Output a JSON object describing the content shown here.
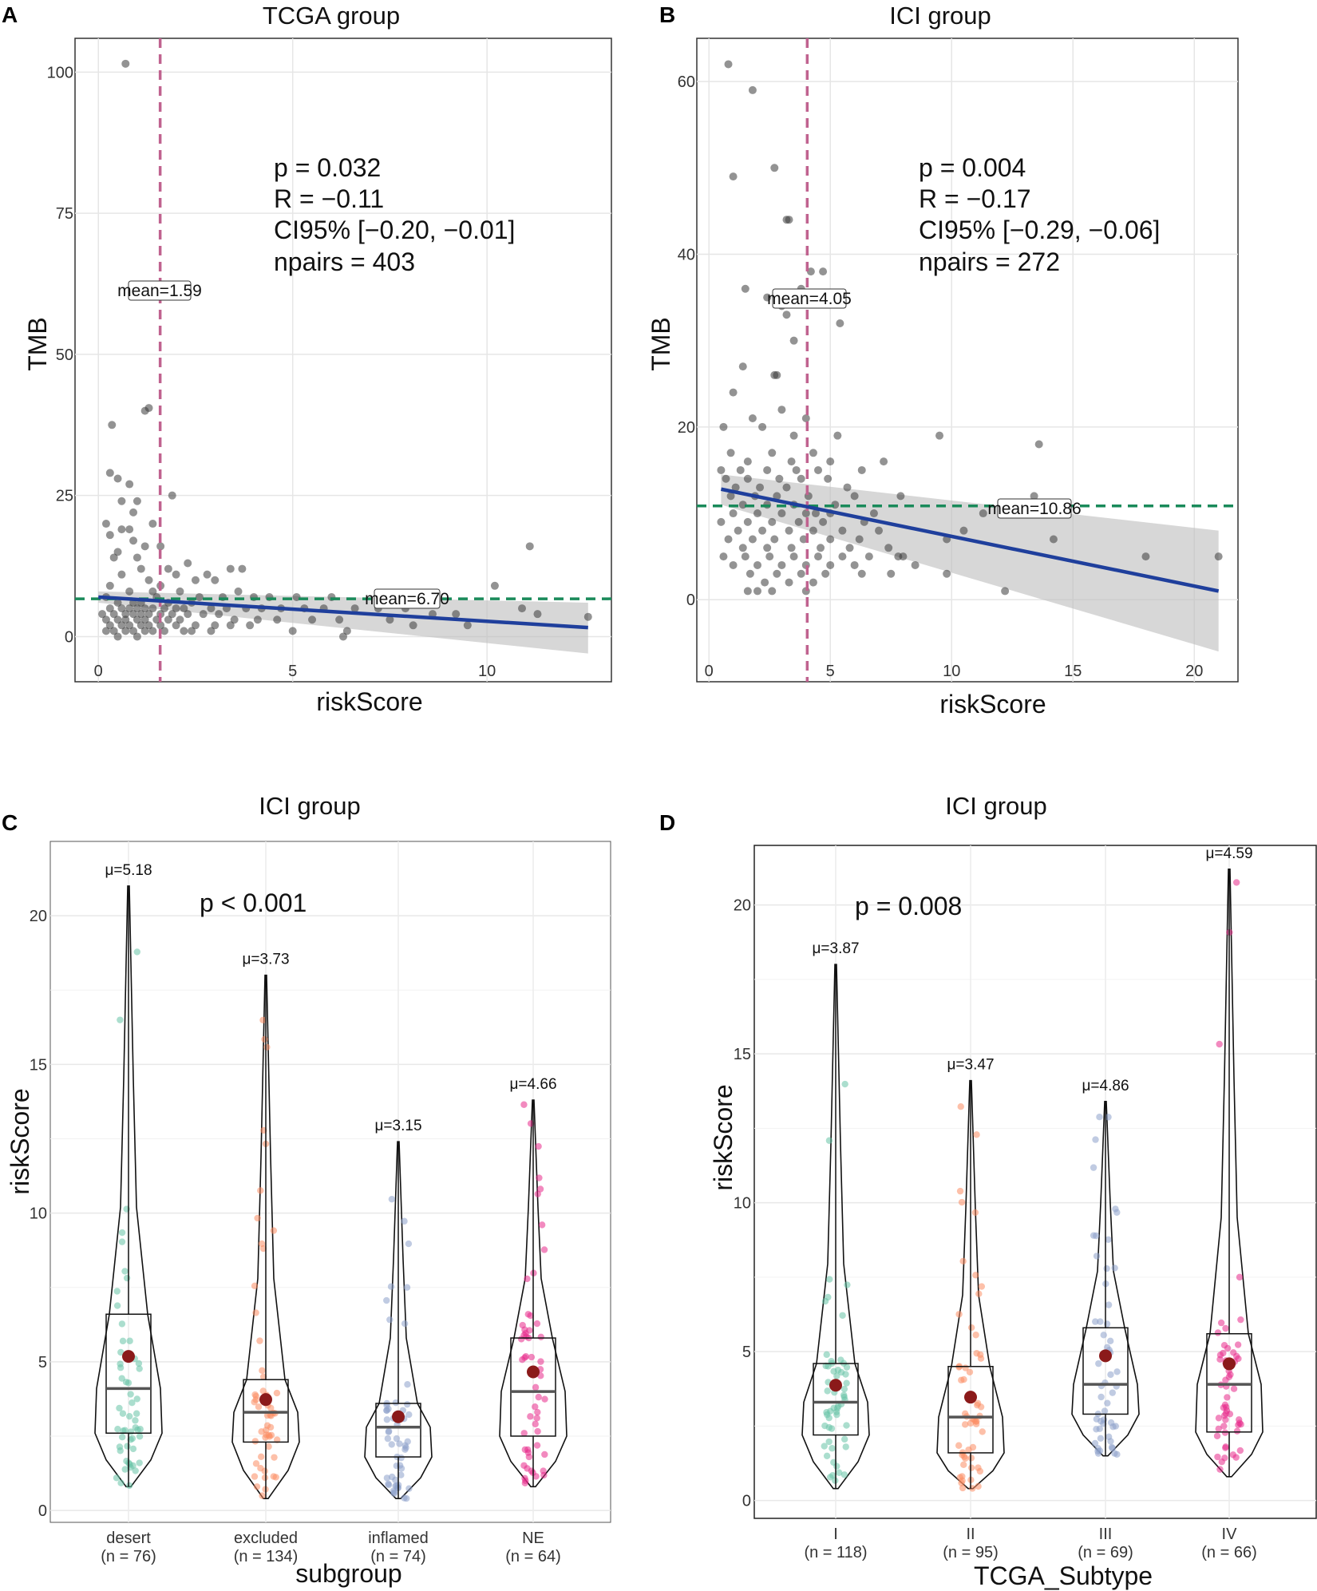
{
  "chart_data": [
    {
      "panel": "A",
      "type": "scatter",
      "title": "TCGA group",
      "xlabel": "riskScore",
      "ylabel": "TMB",
      "xlim": [
        -0.6,
        13.2
      ],
      "ylim": [
        -8,
        106
      ],
      "xticks": [
        0,
        5,
        10
      ],
      "yticks": [
        0,
        25,
        50,
        75,
        100
      ],
      "stats": [
        "p = 0.032",
        "R = −0.11",
        "CI95% [−0.20, −0.01]",
        "npairs = 403"
      ],
      "vline": {
        "value": 1.59,
        "label": "mean=1.59",
        "color": "#c0628f"
      },
      "hline": {
        "value": 6.7,
        "label": "mean=6.70",
        "color": "#1a8a5a"
      },
      "regression": {
        "x0": 0.0,
        "y0": 7.0,
        "x1": 12.6,
        "y1": 1.6,
        "ci_lower": [
          6.0,
          -3.0
        ],
        "ci_upper": [
          8.0,
          6.0
        ],
        "color": "#1f3f9c"
      },
      "points": [
        [
          0.7,
          101.5
        ],
        [
          1.2,
          40
        ],
        [
          1.3,
          40.5
        ],
        [
          0.35,
          37.5
        ],
        [
          0.3,
          29
        ],
        [
          0.5,
          28
        ],
        [
          0.8,
          27
        ],
        [
          1.0,
          24
        ],
        [
          1.9,
          25
        ],
        [
          0.6,
          24
        ],
        [
          0.9,
          22
        ],
        [
          0.2,
          20
        ],
        [
          0.6,
          19
        ],
        [
          0.8,
          19
        ],
        [
          1.4,
          20
        ],
        [
          0.3,
          18
        ],
        [
          0.9,
          17
        ],
        [
          1.2,
          16
        ],
        [
          0.5,
          15
        ],
        [
          1.6,
          16
        ],
        [
          0.4,
          14
        ],
        [
          1.0,
          14
        ],
        [
          2.3,
          13
        ],
        [
          1.1,
          12
        ],
        [
          1.8,
          12
        ],
        [
          2.8,
          11
        ],
        [
          3.4,
          12
        ],
        [
          3.7,
          12
        ],
        [
          2.0,
          11
        ],
        [
          2.5,
          10
        ],
        [
          0.6,
          11
        ],
        [
          1.3,
          10
        ],
        [
          3.0,
          10
        ],
        [
          1.6,
          9
        ],
        [
          0.3,
          9
        ],
        [
          0.8,
          8
        ],
        [
          2.1,
          8
        ],
        [
          1.4,
          8
        ],
        [
          2.6,
          7
        ],
        [
          3.2,
          7
        ],
        [
          3.6,
          8
        ],
        [
          4.0,
          7
        ],
        [
          4.4,
          7
        ],
        [
          5.1,
          7
        ],
        [
          6.0,
          7
        ],
        [
          0.2,
          7
        ],
        [
          0.5,
          6
        ],
        [
          0.9,
          6
        ],
        [
          1.1,
          6
        ],
        [
          1.5,
          7
        ],
        [
          1.8,
          6
        ],
        [
          2.4,
          6
        ],
        [
          2.9,
          5
        ],
        [
          3.3,
          5
        ],
        [
          3.8,
          5
        ],
        [
          4.2,
          5
        ],
        [
          4.7,
          5
        ],
        [
          5.3,
          5
        ],
        [
          5.8,
          5
        ],
        [
          6.6,
          5
        ],
        [
          7.2,
          5
        ],
        [
          7.9,
          5
        ],
        [
          8.6,
          4
        ],
        [
          9.2,
          4
        ],
        [
          10.2,
          9
        ],
        [
          11.1,
          16
        ],
        [
          10.9,
          5
        ],
        [
          11.3,
          4
        ],
        [
          12.6,
          3.5
        ],
        [
          0.3,
          5
        ],
        [
          0.6,
          5
        ],
        [
          0.8,
          5
        ],
        [
          1.0,
          5
        ],
        [
          1.2,
          5
        ],
        [
          1.4,
          5
        ],
        [
          1.7,
          5
        ],
        [
          2.0,
          5
        ],
        [
          2.2,
          5
        ],
        [
          0.1,
          4
        ],
        [
          0.4,
          4
        ],
        [
          0.7,
          4
        ],
        [
          0.9,
          4
        ],
        [
          1.1,
          4
        ],
        [
          1.3,
          4
        ],
        [
          1.6,
          4
        ],
        [
          1.9,
          4
        ],
        [
          2.3,
          4
        ],
        [
          2.7,
          4
        ],
        [
          3.1,
          4
        ],
        [
          3.5,
          3
        ],
        [
          4.1,
          3
        ],
        [
          4.6,
          3
        ],
        [
          5.5,
          3
        ],
        [
          6.2,
          3
        ],
        [
          7.5,
          3
        ],
        [
          8.1,
          2
        ],
        [
          0.2,
          3
        ],
        [
          0.5,
          3
        ],
        [
          0.7,
          3
        ],
        [
          1.0,
          3
        ],
        [
          1.2,
          3
        ],
        [
          1.5,
          3
        ],
        [
          1.8,
          3
        ],
        [
          2.1,
          3
        ],
        [
          2.5,
          2
        ],
        [
          3.0,
          2
        ],
        [
          3.4,
          2
        ],
        [
          3.9,
          2
        ],
        [
          0.3,
          2
        ],
        [
          0.6,
          2
        ],
        [
          0.8,
          2
        ],
        [
          1.1,
          2
        ],
        [
          1.3,
          2
        ],
        [
          1.6,
          2
        ],
        [
          2.0,
          2
        ],
        [
          2.4,
          1
        ],
        [
          0.2,
          1
        ],
        [
          0.4,
          1
        ],
        [
          0.7,
          1
        ],
        [
          0.9,
          1
        ],
        [
          1.2,
          1
        ],
        [
          1.4,
          1
        ],
        [
          1.7,
          1
        ],
        [
          2.2,
          1
        ],
        [
          2.9,
          1
        ],
        [
          5.0,
          1
        ],
        [
          6.4,
          1
        ],
        [
          9.5,
          2
        ],
        [
          0.5,
          0
        ],
        [
          1.0,
          0
        ],
        [
          6.3,
          0
        ]
      ]
    },
    {
      "panel": "B",
      "type": "scatter",
      "title": "ICI group",
      "xlabel": "riskScore",
      "ylabel": "TMB",
      "xlim": [
        -0.5,
        21.8
      ],
      "ylim": [
        -9.5,
        65
      ],
      "xticks": [
        0,
        5,
        10,
        15,
        20
      ],
      "yticks": [
        0,
        20,
        40,
        60
      ],
      "stats": [
        "p = 0.004",
        "R = −0.17",
        "CI95% [−0.29, −0.06]",
        "npairs = 272"
      ],
      "vline": {
        "value": 4.05,
        "label": "mean=4.05",
        "color": "#c0628f"
      },
      "hline": {
        "value": 10.86,
        "label": "mean=10.86",
        "color": "#1a8a5a"
      },
      "regression": {
        "x0": 0.5,
        "y0": 12.8,
        "x1": 21.0,
        "y1": 1.0,
        "ci_lower": [
          11.0,
          -6.0
        ],
        "ci_upper": [
          14.5,
          8.0
        ],
        "color": "#1f3f9c"
      },
      "points": [
        [
          0.8,
          62
        ],
        [
          1.8,
          59
        ],
        [
          1.0,
          49
        ],
        [
          2.7,
          50
        ],
        [
          3.2,
          44
        ],
        [
          3.3,
          44
        ],
        [
          2.4,
          35
        ],
        [
          3.8,
          36
        ],
        [
          1.5,
          36
        ],
        [
          4.2,
          38
        ],
        [
          4.7,
          38
        ],
        [
          3.0,
          34
        ],
        [
          3.2,
          33
        ],
        [
          5.4,
          32
        ],
        [
          3.5,
          30
        ],
        [
          1.4,
          27
        ],
        [
          2.7,
          26
        ],
        [
          2.8,
          26
        ],
        [
          1.0,
          24
        ],
        [
          3.0,
          22
        ],
        [
          1.8,
          21
        ],
        [
          4.0,
          21
        ],
        [
          0.6,
          20
        ],
        [
          2.2,
          20
        ],
        [
          3.5,
          19
        ],
        [
          5.3,
          19
        ],
        [
          9.5,
          19
        ],
        [
          13.6,
          18
        ],
        [
          0.9,
          17
        ],
        [
          2.6,
          17
        ],
        [
          4.3,
          17
        ],
        [
          1.6,
          16
        ],
        [
          3.4,
          16
        ],
        [
          5.0,
          16
        ],
        [
          7.2,
          16
        ],
        [
          0.5,
          15
        ],
        [
          1.3,
          15
        ],
        [
          2.4,
          15
        ],
        [
          3.6,
          15
        ],
        [
          4.5,
          15
        ],
        [
          6.3,
          15
        ],
        [
          0.7,
          14
        ],
        [
          1.6,
          14
        ],
        [
          2.9,
          14
        ],
        [
          3.8,
          14
        ],
        [
          4.9,
          14
        ],
        [
          1.1,
          13
        ],
        [
          2.1,
          13
        ],
        [
          3.2,
          13
        ],
        [
          5.7,
          13
        ],
        [
          7.9,
          12
        ],
        [
          0.9,
          12
        ],
        [
          1.9,
          12
        ],
        [
          2.8,
          12
        ],
        [
          4.1,
          12
        ],
        [
          6.0,
          12
        ],
        [
          13.4,
          12
        ],
        [
          1.4,
          11
        ],
        [
          2.4,
          11
        ],
        [
          3.5,
          11
        ],
        [
          4.4,
          10
        ],
        [
          5.2,
          11
        ],
        [
          12.5,
          11
        ],
        [
          1.0,
          10
        ],
        [
          2.0,
          10
        ],
        [
          3.0,
          10
        ],
        [
          4.0,
          10
        ],
        [
          5.0,
          10
        ],
        [
          6.8,
          10
        ],
        [
          11.3,
          10
        ],
        [
          0.5,
          9
        ],
        [
          1.6,
          9
        ],
        [
          2.6,
          9
        ],
        [
          3.7,
          9
        ],
        [
          4.7,
          9
        ],
        [
          6.4,
          9
        ],
        [
          10.5,
          8
        ],
        [
          1.2,
          8
        ],
        [
          2.2,
          8
        ],
        [
          3.3,
          8
        ],
        [
          4.3,
          8
        ],
        [
          5.5,
          8
        ],
        [
          7.0,
          8
        ],
        [
          0.8,
          7
        ],
        [
          1.8,
          7
        ],
        [
          2.7,
          7
        ],
        [
          3.9,
          7
        ],
        [
          5.0,
          7
        ],
        [
          6.2,
          7
        ],
        [
          9.8,
          7
        ],
        [
          1.4,
          6
        ],
        [
          2.4,
          6
        ],
        [
          3.4,
          6
        ],
        [
          4.6,
          6
        ],
        [
          5.8,
          6
        ],
        [
          7.4,
          6
        ],
        [
          14.2,
          7
        ],
        [
          0.6,
          5
        ],
        [
          1.5,
          5
        ],
        [
          2.5,
          5
        ],
        [
          3.5,
          5
        ],
        [
          4.5,
          5
        ],
        [
          5.5,
          5
        ],
        [
          6.6,
          5
        ],
        [
          7.8,
          5
        ],
        [
          1.0,
          4
        ],
        [
          2.0,
          4
        ],
        [
          3.0,
          4
        ],
        [
          4.0,
          4
        ],
        [
          5.0,
          4
        ],
        [
          6.0,
          4
        ],
        [
          8.5,
          4
        ],
        [
          1.7,
          3
        ],
        [
          2.8,
          3
        ],
        [
          3.8,
          3
        ],
        [
          4.8,
          3
        ],
        [
          6.3,
          3
        ],
        [
          7.5,
          3
        ],
        [
          9.8,
          3
        ],
        [
          2.3,
          2
        ],
        [
          3.3,
          2
        ],
        [
          4.3,
          2
        ],
        [
          1.6,
          1
        ],
        [
          2.6,
          1
        ],
        [
          4.0,
          1
        ],
        [
          12.2,
          1
        ],
        [
          18.0,
          5
        ],
        [
          21.0,
          5
        ],
        [
          8.0,
          5
        ],
        [
          2.0,
          1
        ]
      ]
    },
    {
      "panel": "C",
      "type": "violin",
      "title": "ICI group",
      "xlabel": "subgroup",
      "ylabel": "riskScore",
      "ylim": [
        -0.4,
        22.5
      ],
      "yticks": [
        0,
        5,
        10,
        15,
        20
      ],
      "annotation": "p  < 0.001",
      "categories": [
        "desert",
        "excluded",
        "inflamed",
        "NE"
      ],
      "counts": [
        "(n = 76)",
        "(n = 134)",
        "(n = 74)",
        "(n = 64)"
      ],
      "means": [
        5.18,
        3.73,
        3.15,
        4.66
      ],
      "mean_labels": [
        "μ=5.18",
        "μ=3.73",
        "μ=3.15",
        "μ=4.66"
      ],
      "boxes": [
        {
          "q1": 2.6,
          "median": 4.1,
          "q3": 6.6,
          "min": 0.8,
          "max": 21.0
        },
        {
          "q1": 2.3,
          "median": 3.3,
          "q3": 4.4,
          "min": 0.4,
          "max": 18.0
        },
        {
          "q1": 1.8,
          "median": 2.8,
          "q3": 3.6,
          "min": 0.4,
          "max": 12.4
        },
        {
          "q1": 2.5,
          "median": 4.0,
          "q3": 5.8,
          "min": 0.8,
          "max": 13.8
        }
      ],
      "colors": [
        "#66c2a5",
        "#fc8d62",
        "#8da0cb",
        "#e7298a"
      ]
    },
    {
      "panel": "D",
      "type": "violin",
      "title": "ICI group",
      "xlabel": "TCGA_Subtype",
      "ylabel": "riskScore",
      "ylim": [
        -0.6,
        22.0
      ],
      "yticks": [
        0,
        5,
        10,
        15,
        20
      ],
      "annotation": "p  = 0.008",
      "categories": [
        "I",
        "II",
        "III",
        "IV"
      ],
      "counts": [
        "(n = 118)",
        "(n = 95)",
        "(n = 69)",
        "(n = 66)"
      ],
      "means": [
        3.87,
        3.47,
        4.86,
        4.59
      ],
      "mean_labels": [
        "μ=3.87",
        "μ=3.47",
        "μ=4.86",
        "μ=4.59"
      ],
      "boxes": [
        {
          "q1": 2.2,
          "median": 3.3,
          "q3": 4.6,
          "min": 0.4,
          "max": 18.0
        },
        {
          "q1": 1.6,
          "median": 2.8,
          "q3": 4.5,
          "min": 0.4,
          "max": 14.1
        },
        {
          "q1": 2.9,
          "median": 3.9,
          "q3": 5.8,
          "min": 1.5,
          "max": 13.4
        },
        {
          "q1": 2.3,
          "median": 3.9,
          "q3": 5.6,
          "min": 0.8,
          "max": 21.2
        }
      ],
      "colors": [
        "#66c2a5",
        "#fc8d62",
        "#8da0cb",
        "#e7298a"
      ]
    }
  ]
}
